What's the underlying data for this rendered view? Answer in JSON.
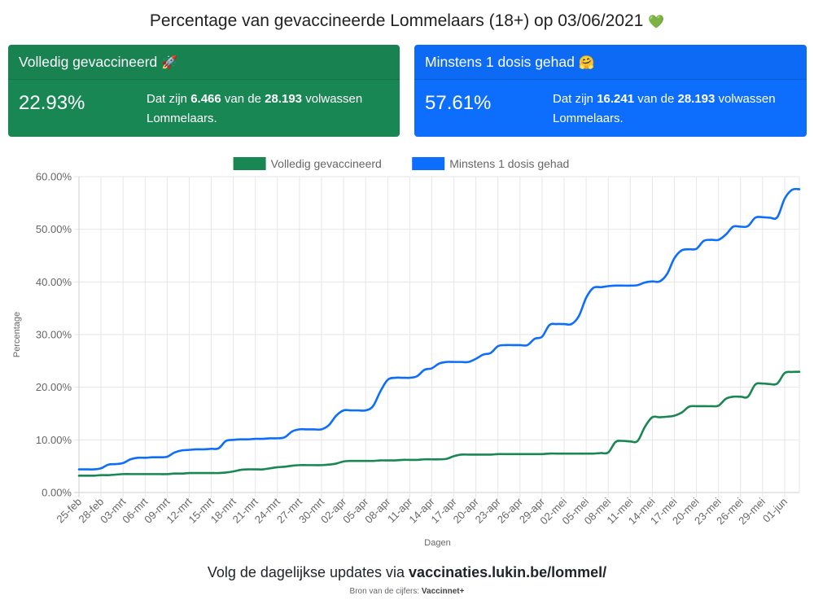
{
  "header": {
    "title": "Percentage van gevaccineerde Lommelaars (18+) op 03/06/2021",
    "title_emoji": "💚"
  },
  "cards": [
    {
      "title": "Volledig gevaccineerd",
      "emoji": "🚀",
      "percentage": "22.93%",
      "text_prefix": "Dat zijn",
      "count": "6.466",
      "text_middle": "van de",
      "total": "28.193",
      "text_suffix": "volwassen Lommelaars.",
      "color": "#198754"
    },
    {
      "title": "Minstens 1 dosis gehad",
      "emoji": "🤗",
      "percentage": "57.61%",
      "text_prefix": "Dat zijn",
      "count": "16.241",
      "text_middle": "van de",
      "total": "28.193",
      "text_suffix": "volwassen Lommelaars.",
      "color": "#0d6efd"
    }
  ],
  "chart_data": {
    "type": "line",
    "title": "",
    "xlabel": "Dagen",
    "ylabel": "Percentage",
    "ylim": [
      0,
      60
    ],
    "yticks": [
      "0.00%",
      "10.00%",
      "20.00%",
      "30.00%",
      "40.00%",
      "50.00%",
      "60.00%"
    ],
    "grid": true,
    "legend_position": "top",
    "x": [
      "25-feb",
      "26-feb",
      "27-feb",
      "28-feb",
      "01-mrt",
      "02-mrt",
      "03-mrt",
      "04-mrt",
      "05-mrt",
      "06-mrt",
      "07-mrt",
      "08-mrt",
      "09-mrt",
      "10-mrt",
      "11-mrt",
      "12-mrt",
      "13-mrt",
      "14-mrt",
      "15-mrt",
      "16-mrt",
      "17-mrt",
      "18-mrt",
      "19-mrt",
      "20-mrt",
      "21-mrt",
      "22-mrt",
      "23-mrt",
      "24-mrt",
      "25-mrt",
      "26-mrt",
      "27-mrt",
      "28-mrt",
      "29-mrt",
      "30-mrt",
      "31-mrt",
      "01-apr",
      "02-apr",
      "03-apr",
      "04-apr",
      "05-apr",
      "06-apr",
      "07-apr",
      "08-apr",
      "09-apr",
      "10-apr",
      "11-apr",
      "12-apr",
      "13-apr",
      "14-apr",
      "15-apr",
      "16-apr",
      "17-apr",
      "18-apr",
      "19-apr",
      "20-apr",
      "21-apr",
      "22-apr",
      "23-apr",
      "24-apr",
      "25-apr",
      "26-apr",
      "27-apr",
      "28-apr",
      "29-apr",
      "30-apr",
      "01-mei",
      "02-mei",
      "03-mei",
      "04-mei",
      "05-mei",
      "06-mei",
      "07-mei",
      "08-mei",
      "09-mei",
      "10-mei",
      "11-mei",
      "12-mei",
      "13-mei",
      "14-mei",
      "15-mei",
      "16-mei",
      "17-mei",
      "18-mei",
      "19-mei",
      "20-mei",
      "21-mei",
      "22-mei",
      "23-mei",
      "24-mei",
      "25-mei",
      "26-mei",
      "27-mei",
      "28-mei",
      "29-mei",
      "30-mei",
      "31-mei",
      "01-jun",
      "02-jun",
      "03-jun"
    ],
    "x_tick_labels": [
      "25-feb",
      "28-feb",
      "03-mrt",
      "06-mrt",
      "09-mrt",
      "12-mrt",
      "15-mrt",
      "18-mrt",
      "21-mrt",
      "24-mrt",
      "27-mrt",
      "30-mrt",
      "02-apr",
      "05-apr",
      "08-apr",
      "11-apr",
      "14-apr",
      "17-apr",
      "20-apr",
      "23-apr",
      "26-apr",
      "29-apr",
      "02-mei",
      "05-mei",
      "08-mei",
      "11-mei",
      "14-mei",
      "17-mei",
      "20-mei",
      "23-mei",
      "26-mei",
      "29-mei",
      "01-jun"
    ],
    "series": [
      {
        "name": "Volledig gevaccineerd",
        "color": "#198754",
        "values": [
          3.2,
          3.2,
          3.2,
          3.3,
          3.3,
          3.4,
          3.5,
          3.5,
          3.5,
          3.5,
          3.5,
          3.5,
          3.5,
          3.6,
          3.6,
          3.7,
          3.7,
          3.7,
          3.7,
          3.7,
          3.8,
          4.0,
          4.3,
          4.4,
          4.4,
          4.4,
          4.6,
          4.8,
          4.9,
          5.1,
          5.2,
          5.2,
          5.2,
          5.2,
          5.3,
          5.5,
          5.9,
          6.0,
          6.0,
          6.0,
          6.0,
          6.1,
          6.1,
          6.1,
          6.2,
          6.2,
          6.2,
          6.3,
          6.3,
          6.3,
          6.4,
          6.9,
          7.2,
          7.2,
          7.2,
          7.2,
          7.2,
          7.3,
          7.3,
          7.3,
          7.3,
          7.3,
          7.3,
          7.3,
          7.4,
          7.4,
          7.4,
          7.4,
          7.4,
          7.4,
          7.4,
          7.5,
          7.6,
          9.6,
          9.8,
          9.7,
          9.8,
          12.5,
          14.3,
          14.3,
          14.4,
          14.6,
          15.2,
          16.3,
          16.4,
          16.4,
          16.4,
          16.5,
          17.8,
          18.2,
          18.2,
          18.2,
          20.5,
          20.7,
          20.6,
          20.7,
          22.7,
          22.9,
          22.93
        ]
      },
      {
        "name": "Minstens 1 dosis gehad",
        "color": "#0d6efd",
        "values": [
          4.4,
          4.4,
          4.4,
          4.6,
          5.3,
          5.4,
          5.6,
          6.3,
          6.6,
          6.6,
          6.7,
          6.7,
          6.8,
          7.6,
          8.0,
          8.1,
          8.2,
          8.2,
          8.3,
          8.4,
          9.8,
          10.0,
          10.1,
          10.1,
          10.2,
          10.2,
          10.3,
          10.3,
          10.5,
          11.6,
          12.0,
          12.0,
          12.0,
          12.0,
          12.8,
          14.6,
          15.6,
          15.6,
          15.6,
          15.6,
          16.4,
          19.2,
          21.4,
          21.8,
          21.8,
          21.8,
          22.1,
          23.3,
          23.6,
          24.5,
          24.8,
          24.8,
          24.8,
          24.8,
          25.4,
          26.2,
          26.5,
          27.8,
          28.0,
          28.0,
          28.0,
          28.0,
          29.2,
          29.6,
          31.8,
          32.0,
          32.0,
          32.0,
          33.5,
          37.0,
          38.9,
          39.0,
          39.2,
          39.3,
          39.3,
          39.3,
          39.4,
          39.9,
          40.1,
          40.1,
          41.5,
          44.5,
          46.0,
          46.2,
          46.3,
          47.8,
          48.0,
          48.0,
          49.0,
          50.5,
          50.5,
          50.6,
          52.2,
          52.3,
          52.2,
          52.3,
          55.8,
          57.5,
          57.61
        ]
      }
    ]
  },
  "footer": {
    "text": "Volg de dagelijkse updates via",
    "link": "vaccinaties.lukin.be/lommel/",
    "source_label": "Bron van de cijfers:",
    "source_name": "Vaccinnet+"
  }
}
